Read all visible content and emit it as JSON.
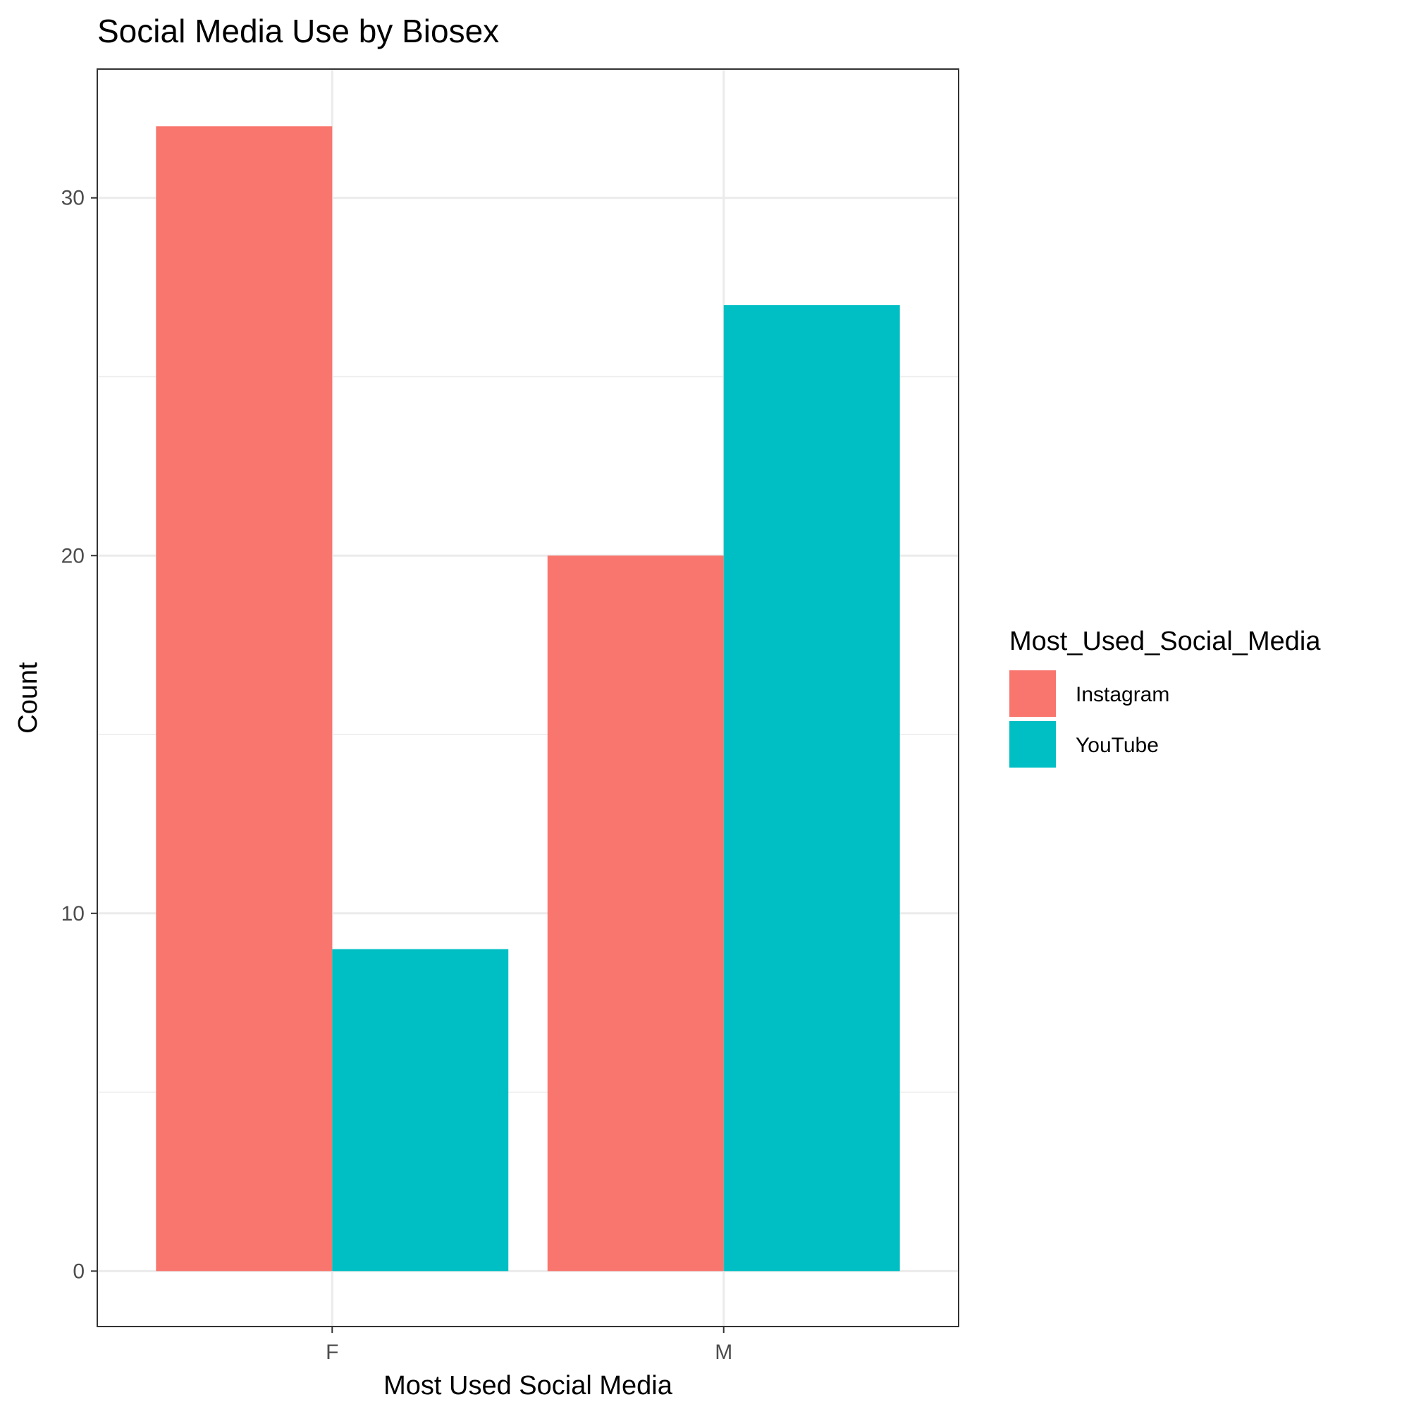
{
  "chart_data": {
    "type": "bar",
    "title": "Social Media Use by Biosex",
    "xlabel": "Most Used Social Media",
    "ylabel": "Count",
    "categories": [
      "F",
      "M"
    ],
    "series": [
      {
        "name": "Instagram",
        "color": "#F8766D",
        "values": [
          32,
          20
        ]
      },
      {
        "name": "YouTube",
        "color": "#00BFC4",
        "values": [
          9,
          27
        ]
      }
    ],
    "ylim": [
      -1.55,
      33.6
    ],
    "yticks": [
      0,
      10,
      20,
      30
    ],
    "ytick_labels": [
      "0",
      "10",
      "20",
      "30"
    ],
    "grid": true,
    "legend": {
      "title": "Most_Used_Social_Media",
      "placement": "right",
      "items": [
        "Instagram",
        "YouTube"
      ]
    }
  }
}
